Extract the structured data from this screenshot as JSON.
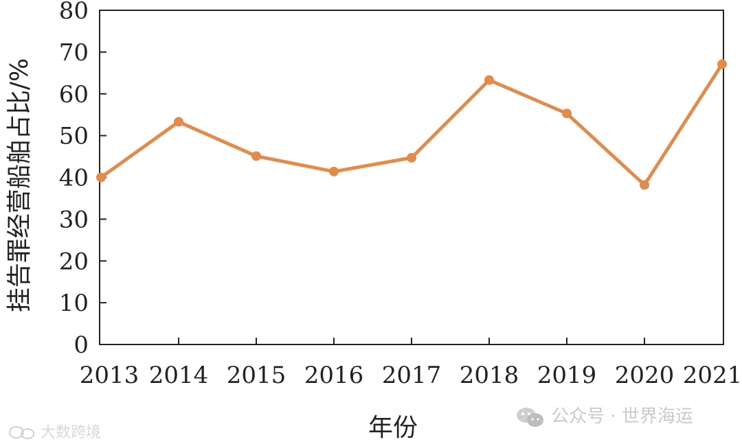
{
  "chart_data": {
    "type": "line",
    "x": [
      "2013",
      "2014",
      "2015",
      "2016",
      "2017",
      "2018",
      "2019",
      "2020",
      "2021"
    ],
    "series": [
      {
        "values": [
          40,
          53.3,
          45.1,
          41.4,
          44.7,
          63.3,
          55.3,
          38.2,
          67.1
        ]
      }
    ],
    "ylim": [
      0,
      80
    ],
    "yticks": [
      "0",
      "10",
      "20",
      "30",
      "40",
      "50",
      "60",
      "70",
      "80"
    ],
    "xlabel": "年份",
    "ylabel": "挂告罪经营船舶占比/%",
    "grid": false,
    "color": "#E38B4A"
  },
  "watermarks": {
    "left": "大数跨境",
    "right": "公众号 · 世界海运",
    "right_icon": "wechat-icon",
    "left_icon": "chat-bubble-icon"
  }
}
